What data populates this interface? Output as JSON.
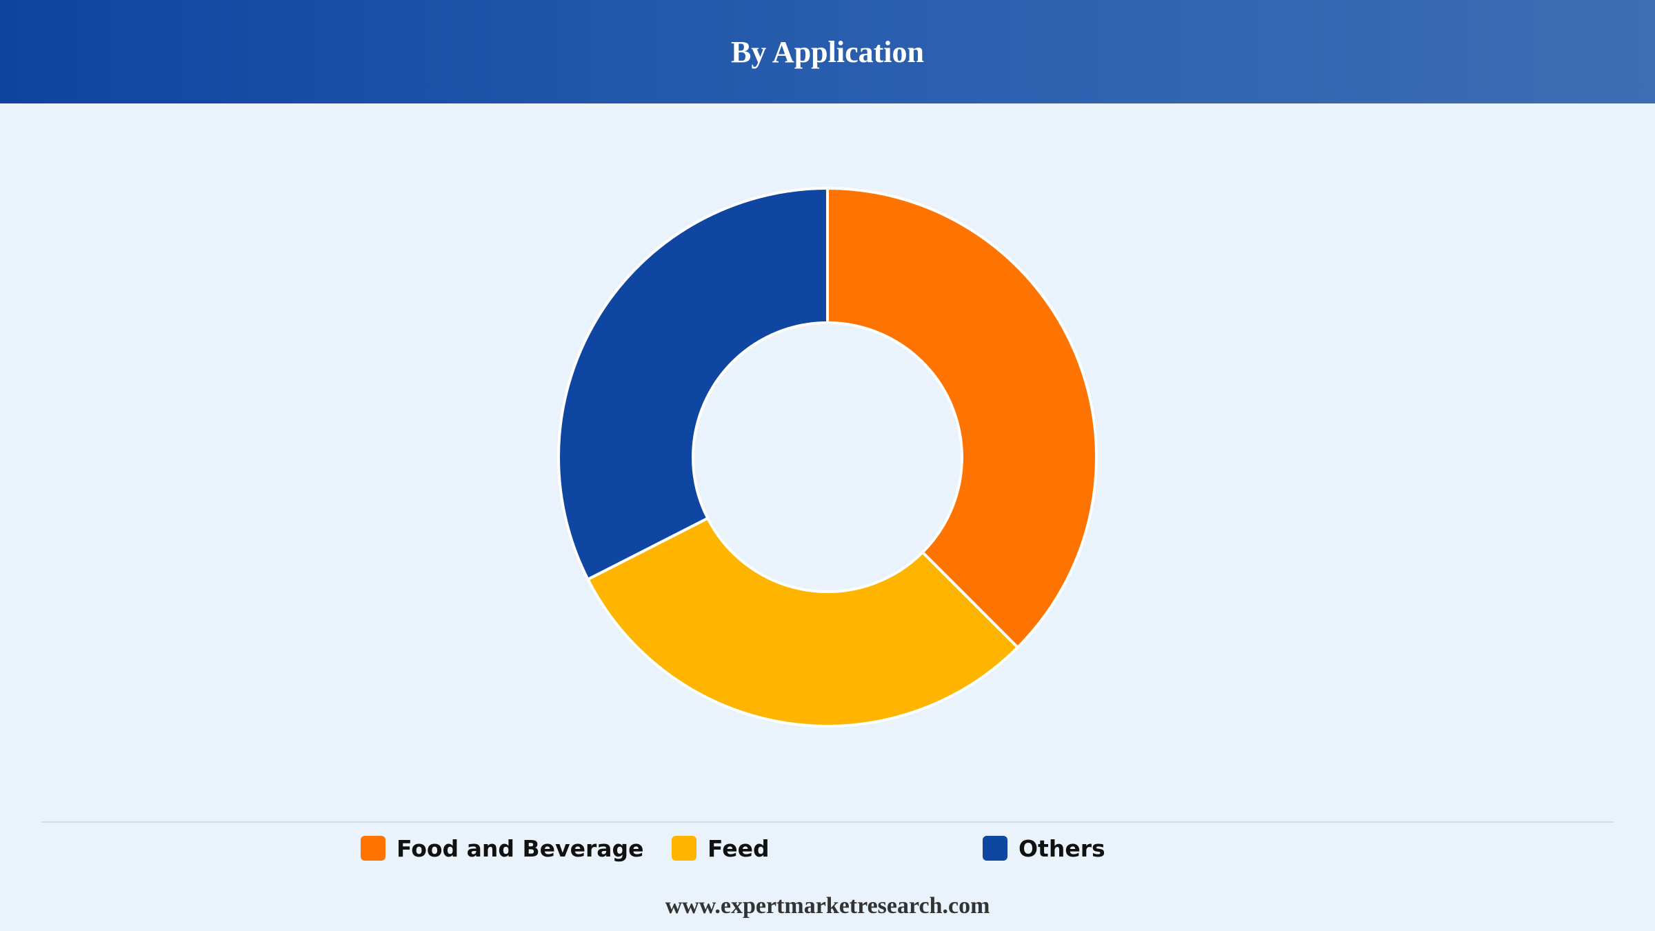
{
  "header": {
    "title": "By Application"
  },
  "chart_data": {
    "type": "pie",
    "donut": true,
    "title": "By Application",
    "series": [
      {
        "name": "Food and Beverage",
        "value": 37.5,
        "color": "#ff7300"
      },
      {
        "name": "Feed",
        "value": 30.0,
        "color": "#ffb400"
      },
      {
        "name": "Others",
        "value": 32.5,
        "color": "#0e46a1"
      }
    ],
    "legend_position": "bottom"
  },
  "footer": {
    "website": "www.expertmarketresearch.com"
  }
}
